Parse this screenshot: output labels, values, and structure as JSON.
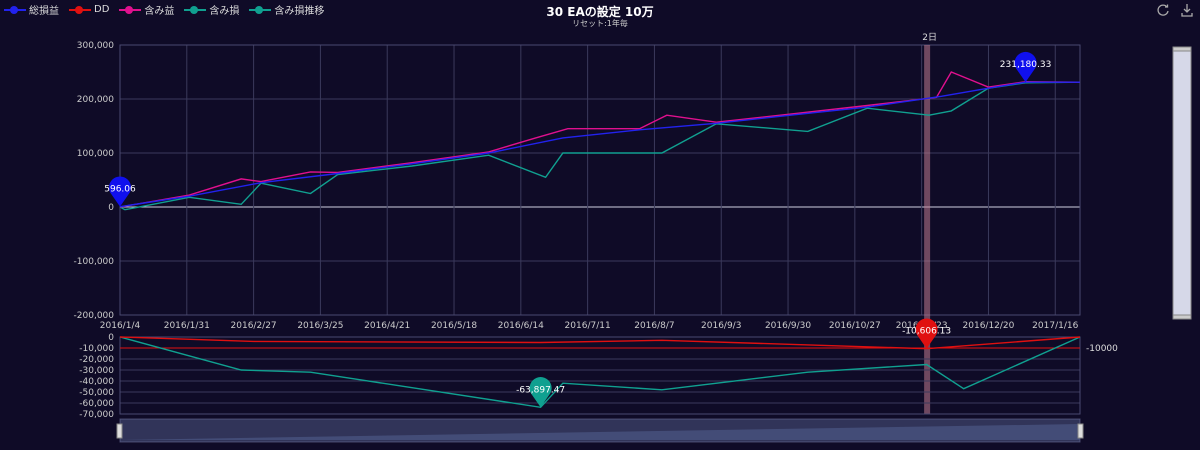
{
  "legend": [
    {
      "name": "総損益",
      "color": "#2222ee"
    },
    {
      "name": "DD",
      "color": "#e01010"
    },
    {
      "name": "含み益",
      "color": "#e0108e"
    },
    {
      "name": "含み損",
      "color": "#10a090"
    },
    {
      "name": "含み損推移",
      "color": "#10a090"
    }
  ],
  "title": "30 EAの設定 10万",
  "subtitle": "リセット:1年毎",
  "toolbox": {
    "refresh_icon": "refresh-icon",
    "download_icon": "download-icon"
  },
  "chart_data": [
    {
      "type": "line",
      "xlabel": "",
      "ylabel": "",
      "x_ticks": [
        "2016/1/4",
        "2016/1/31",
        "2016/2/27",
        "2016/3/25",
        "2016/4/21",
        "2016/5/18",
        "2016/6/14",
        "2016/7/11",
        "2016/8/7",
        "2016/9/3",
        "2016/9/30",
        "2016/10/27",
        "2016/11/23",
        "2016/12/20",
        "2017/1/16"
      ],
      "x_range": [
        "2016/1/4",
        "2017/1/26"
      ],
      "ylim": [
        -200000,
        300000
      ],
      "y_ticks": [
        300000,
        200000,
        100000,
        0,
        -100000,
        -200000
      ],
      "y_tick_labels": [
        "300,000",
        "200,000",
        "100,000",
        "0",
        "-100,000",
        "-200,000"
      ],
      "series": [
        {
          "name": "総損益",
          "color": "#2222ee",
          "points": [
            [
              "2016/1/4",
              596.06
            ],
            [
              "2016/2/1",
              20000
            ],
            [
              "2016/3/1",
              45000
            ],
            [
              "2016/4/1",
              62000
            ],
            [
              "2016/5/1",
              80000
            ],
            [
              "2016/6/1",
              100000
            ],
            [
              "2016/7/1",
              128000
            ],
            [
              "2016/8/1",
              143000
            ],
            [
              "2016/9/1",
              155000
            ],
            [
              "2016/10/1",
              170000
            ],
            [
              "2016/11/1",
              185000
            ],
            [
              "2016/12/1",
              205000
            ],
            [
              "2016/12/20",
              220000
            ],
            [
              "2017/1/4",
              231180.33
            ],
            [
              "2017/1/26",
              231180.33
            ]
          ]
        },
        {
          "name": "含み益",
          "color": "#e0108e",
          "points": [
            [
              "2016/1/4",
              0
            ],
            [
              "2016/2/1",
              22000
            ],
            [
              "2016/2/22",
              52000
            ],
            [
              "2016/3/1",
              47000
            ],
            [
              "2016/3/21",
              65000
            ],
            [
              "2016/4/1",
              64000
            ],
            [
              "2016/5/1",
              82000
            ],
            [
              "2016/6/1",
              102000
            ],
            [
              "2016/6/20",
              128000
            ],
            [
              "2016/7/3",
              145000
            ],
            [
              "2016/8/1",
              145000
            ],
            [
              "2016/8/12",
              170000
            ],
            [
              "2016/9/1",
              157000
            ],
            [
              "2016/10/1",
              172000
            ],
            [
              "2016/11/1",
              188000
            ],
            [
              "2016/11/29",
              203000
            ],
            [
              "2016/12/5",
              250000
            ],
            [
              "2016/12/20",
              222000
            ],
            [
              "2017/1/4",
              232000
            ],
            [
              "2017/1/26",
              231180.33
            ]
          ]
        },
        {
          "name": "含み損推移",
          "color": "#10a090",
          "points": [
            [
              "2016/1/4",
              0
            ],
            [
              "2016/1/6",
              -5000
            ],
            [
              "2016/2/1",
              18000
            ],
            [
              "2016/2/22",
              5000
            ],
            [
              "2016/3/1",
              44000
            ],
            [
              "2016/3/21",
              25000
            ],
            [
              "2016/4/1",
              60000
            ],
            [
              "2016/5/1",
              76000
            ],
            [
              "2016/6/1",
              96000
            ],
            [
              "2016/6/24",
              55000
            ],
            [
              "2016/7/1",
              100000
            ],
            [
              "2016/8/10",
              100000
            ],
            [
              "2016/9/1",
              154000
            ],
            [
              "2016/10/8",
              140000
            ],
            [
              "2016/11/1",
              183000
            ],
            [
              "2016/11/26",
              170000
            ],
            [
              "2016/12/5",
              178000
            ],
            [
              "2016/12/20",
              220000
            ],
            [
              "2017/1/4",
              230000
            ],
            [
              "2017/1/26",
              231180.33
            ]
          ]
        }
      ],
      "mark_points": [
        {
          "series": "総損益",
          "label": "596.06",
          "x": "2016/1/4",
          "y": 596.06,
          "color": "#1010ee"
        },
        {
          "series": "総損益",
          "label": "231,180.33",
          "x": "2017/1/4",
          "y": 231180.33,
          "color": "#1010ee"
        }
      ],
      "mark_area": {
        "label": "2日",
        "from": "2016/11/24",
        "to": "2016/11/26"
      }
    },
    {
      "type": "line",
      "ylim": [
        -70000,
        0
      ],
      "y_ticks": [
        0,
        -10000,
        -20000,
        -30000,
        -40000,
        -50000,
        -60000,
        -70000
      ],
      "y_tick_labels": [
        "0",
        "-10,000",
        "-20,000",
        "-30,000",
        "-40,000",
        "-50,000",
        "-60,000",
        "-70,000"
      ],
      "threshold": {
        "value": -10000,
        "label": "-10000"
      },
      "series": [
        {
          "name": "DD",
          "color": "#e01010",
          "points": [
            [
              "2016/1/4",
              0
            ],
            [
              "2016/2/27",
              -4000
            ],
            [
              "2016/6/22",
              -5000
            ],
            [
              "2016/8/10",
              -3000
            ],
            [
              "2016/11/25",
              -10606.13
            ],
            [
              "2017/1/26",
              0
            ]
          ]
        },
        {
          "name": "含み損",
          "color": "#10a090",
          "points": [
            [
              "2016/1/4",
              0
            ],
            [
              "2016/2/22",
              -30000
            ],
            [
              "2016/3/21",
              -32000
            ],
            [
              "2016/6/22",
              -63897.47
            ],
            [
              "2016/7/1",
              -42000
            ],
            [
              "2016/8/10",
              -48000
            ],
            [
              "2016/10/8",
              -32000
            ],
            [
              "2016/11/25",
              -25000
            ],
            [
              "2016/12/10",
              -47000
            ],
            [
              "2017/1/26",
              0
            ]
          ]
        }
      ],
      "mark_points": [
        {
          "series": "含み損",
          "label": "-63,897.47",
          "x": "2016/6/22",
          "y": -63897.47,
          "color": "#10a090"
        },
        {
          "series": "DD",
          "label": "-10,606.13",
          "x": "2016/11/25",
          "y": -10606.13,
          "color": "#e01010"
        }
      ]
    }
  ],
  "data_zoom": {
    "start": 0,
    "end": 100
  },
  "side_slider": {
    "start": 0,
    "end": 100
  }
}
